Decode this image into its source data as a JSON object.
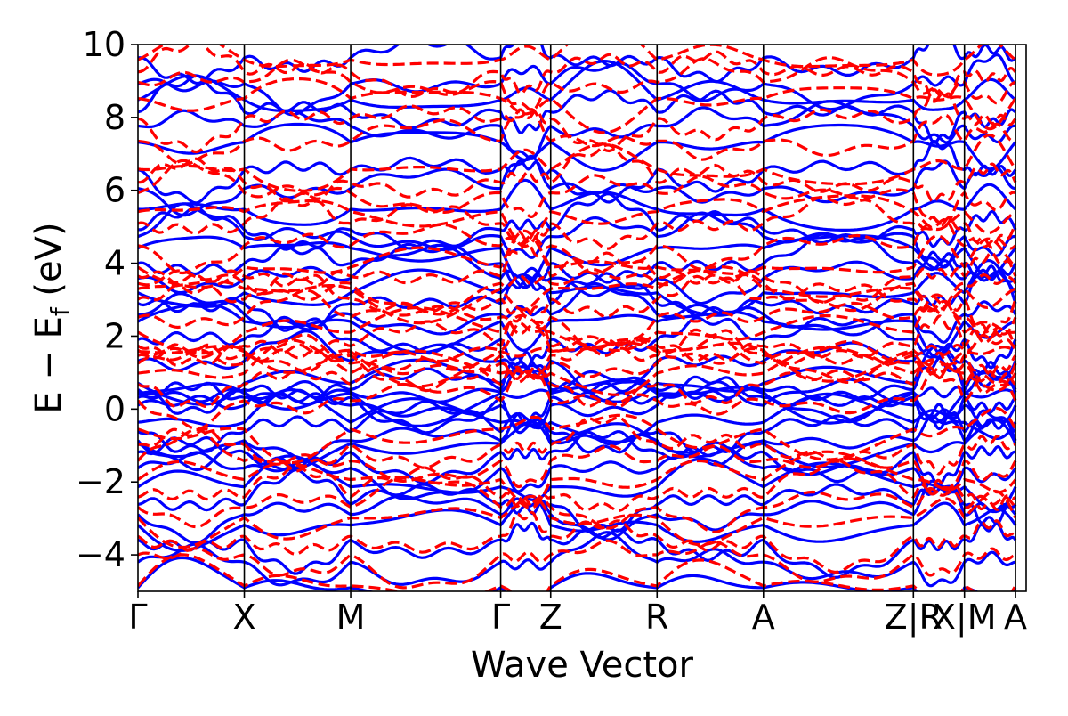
{
  "chart_data": {
    "type": "line",
    "title": "",
    "xlabel": "Wave Vector",
    "ylabel": {
      "main": "E − E",
      "sub": "f",
      "unit": " (eV)"
    },
    "ylim": [
      -5,
      10
    ],
    "yticks": [
      -4,
      -2,
      0,
      2,
      4,
      6,
      8,
      10
    ],
    "ytick_labels": [
      "−4",
      "−2",
      "0",
      "2",
      "4",
      "6",
      "8",
      "10"
    ],
    "x_range": [
      0,
      8.35
    ],
    "kpoints": [
      {
        "label": "Γ",
        "x": 0
      },
      {
        "label": "X",
        "x": 1.0
      },
      {
        "label": "M",
        "x": 2.0
      },
      {
        "label": "Γ",
        "x": 3.41
      },
      {
        "label": "Z",
        "x": 3.88
      },
      {
        "label": "R",
        "x": 4.88
      },
      {
        "label": "A",
        "x": 5.88
      },
      {
        "label": "Z|R",
        "x": 7.29
      },
      {
        "label": "X|M",
        "x": 7.77
      },
      {
        "label": "A",
        "x": 8.25
      }
    ],
    "segment_breaks": [
      0,
      1.0,
      2.0,
      3.41,
      3.88,
      4.88,
      5.88,
      7.29,
      7.77,
      8.25
    ],
    "grid": false,
    "series": [
      {
        "style": "solid",
        "color": "#0000ff",
        "levels": [
          -4.9,
          -4.3,
          -3.7,
          -3.2,
          -2.8,
          -2.5,
          -2.1,
          -1.7,
          -1.3,
          -1.0,
          -0.8,
          -0.5,
          -0.3,
          0.05,
          0.2,
          0.35,
          0.5,
          0.65,
          0.8,
          1.3,
          1.8,
          2.3,
          2.6,
          3.0,
          3.3,
          3.6,
          3.9,
          4.3,
          4.7,
          5.0,
          5.6,
          6.1,
          6.5,
          7.2,
          7.7,
          8.2,
          8.6,
          9.0,
          9.6
        ]
      },
      {
        "style": "dashed",
        "color": "#ff0000",
        "levels": [
          -4.85,
          -4.1,
          -3.6,
          -3.0,
          -2.6,
          -2.3,
          -1.9,
          -1.5,
          -1.1,
          -0.6,
          0.3,
          0.8,
          1.05,
          1.2,
          1.35,
          1.5,
          1.65,
          1.85,
          2.2,
          2.5,
          2.9,
          3.2,
          3.45,
          3.75,
          4.0,
          4.5,
          5.0,
          5.3,
          5.9,
          6.3,
          6.7,
          7.4,
          7.9,
          8.4,
          8.9,
          9.3,
          9.7
        ]
      }
    ]
  }
}
